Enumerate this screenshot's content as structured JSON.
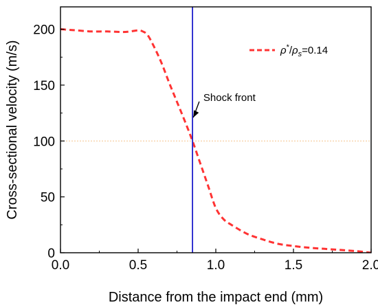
{
  "chart_data": {
    "type": "line",
    "xlabel": "Distance from the impact end (mm)",
    "ylabel": "Cross-sectional velocity (m/s)",
    "xlim": [
      0,
      2.0
    ],
    "ylim": [
      0,
      220
    ],
    "x_ticks": [
      0.0,
      0.5,
      1.0,
      1.5,
      2.0
    ],
    "x_tick_labels": [
      "0.0",
      "0.5",
      "1.0",
      "1.5",
      "2.0"
    ],
    "y_ticks": [
      0,
      50,
      100,
      150,
      200
    ],
    "y_tick_labels": [
      "0",
      "50",
      "100",
      "150",
      "200"
    ],
    "grid": false,
    "legend_position": "top-right",
    "series": [
      {
        "name": "ρ*/ρs=0.14",
        "legend_label": {
          "rho": "ρ",
          "star": "*",
          "slash": "/",
          "rho_s": "ρ",
          "sub_s": "s",
          "value": "=0.14"
        },
        "color": "#ff3333",
        "style": "dashed",
        "x": [
          0.0,
          0.05,
          0.1,
          0.2,
          0.3,
          0.4,
          0.45,
          0.5,
          0.53,
          0.56,
          0.6,
          0.65,
          0.7,
          0.75,
          0.8,
          0.85,
          0.9,
          0.95,
          1.0,
          1.05,
          1.1,
          1.2,
          1.3,
          1.4,
          1.5,
          1.6,
          1.7,
          1.8,
          1.9,
          2.0
        ],
        "y": [
          200,
          199.5,
          199,
          198,
          198,
          197.5,
          198,
          199,
          198,
          195,
          185,
          170,
          152,
          135,
          118,
          100,
          80,
          60,
          40,
          30,
          25,
          17,
          12,
          8,
          6,
          4.5,
          3.5,
          2.5,
          1.5,
          0
        ]
      }
    ],
    "reference_lines": [
      {
        "orientation": "vertical",
        "x": 0.85,
        "color": "#1f1fcc",
        "style": "solid"
      },
      {
        "orientation": "horizontal",
        "y": 100,
        "color": "#f5c38a",
        "style": "dotted"
      }
    ],
    "annotations": [
      {
        "text": "Shock front",
        "arrow_to": [
          0.855,
          121
        ],
        "text_at": [
          0.92,
          139
        ]
      }
    ]
  }
}
